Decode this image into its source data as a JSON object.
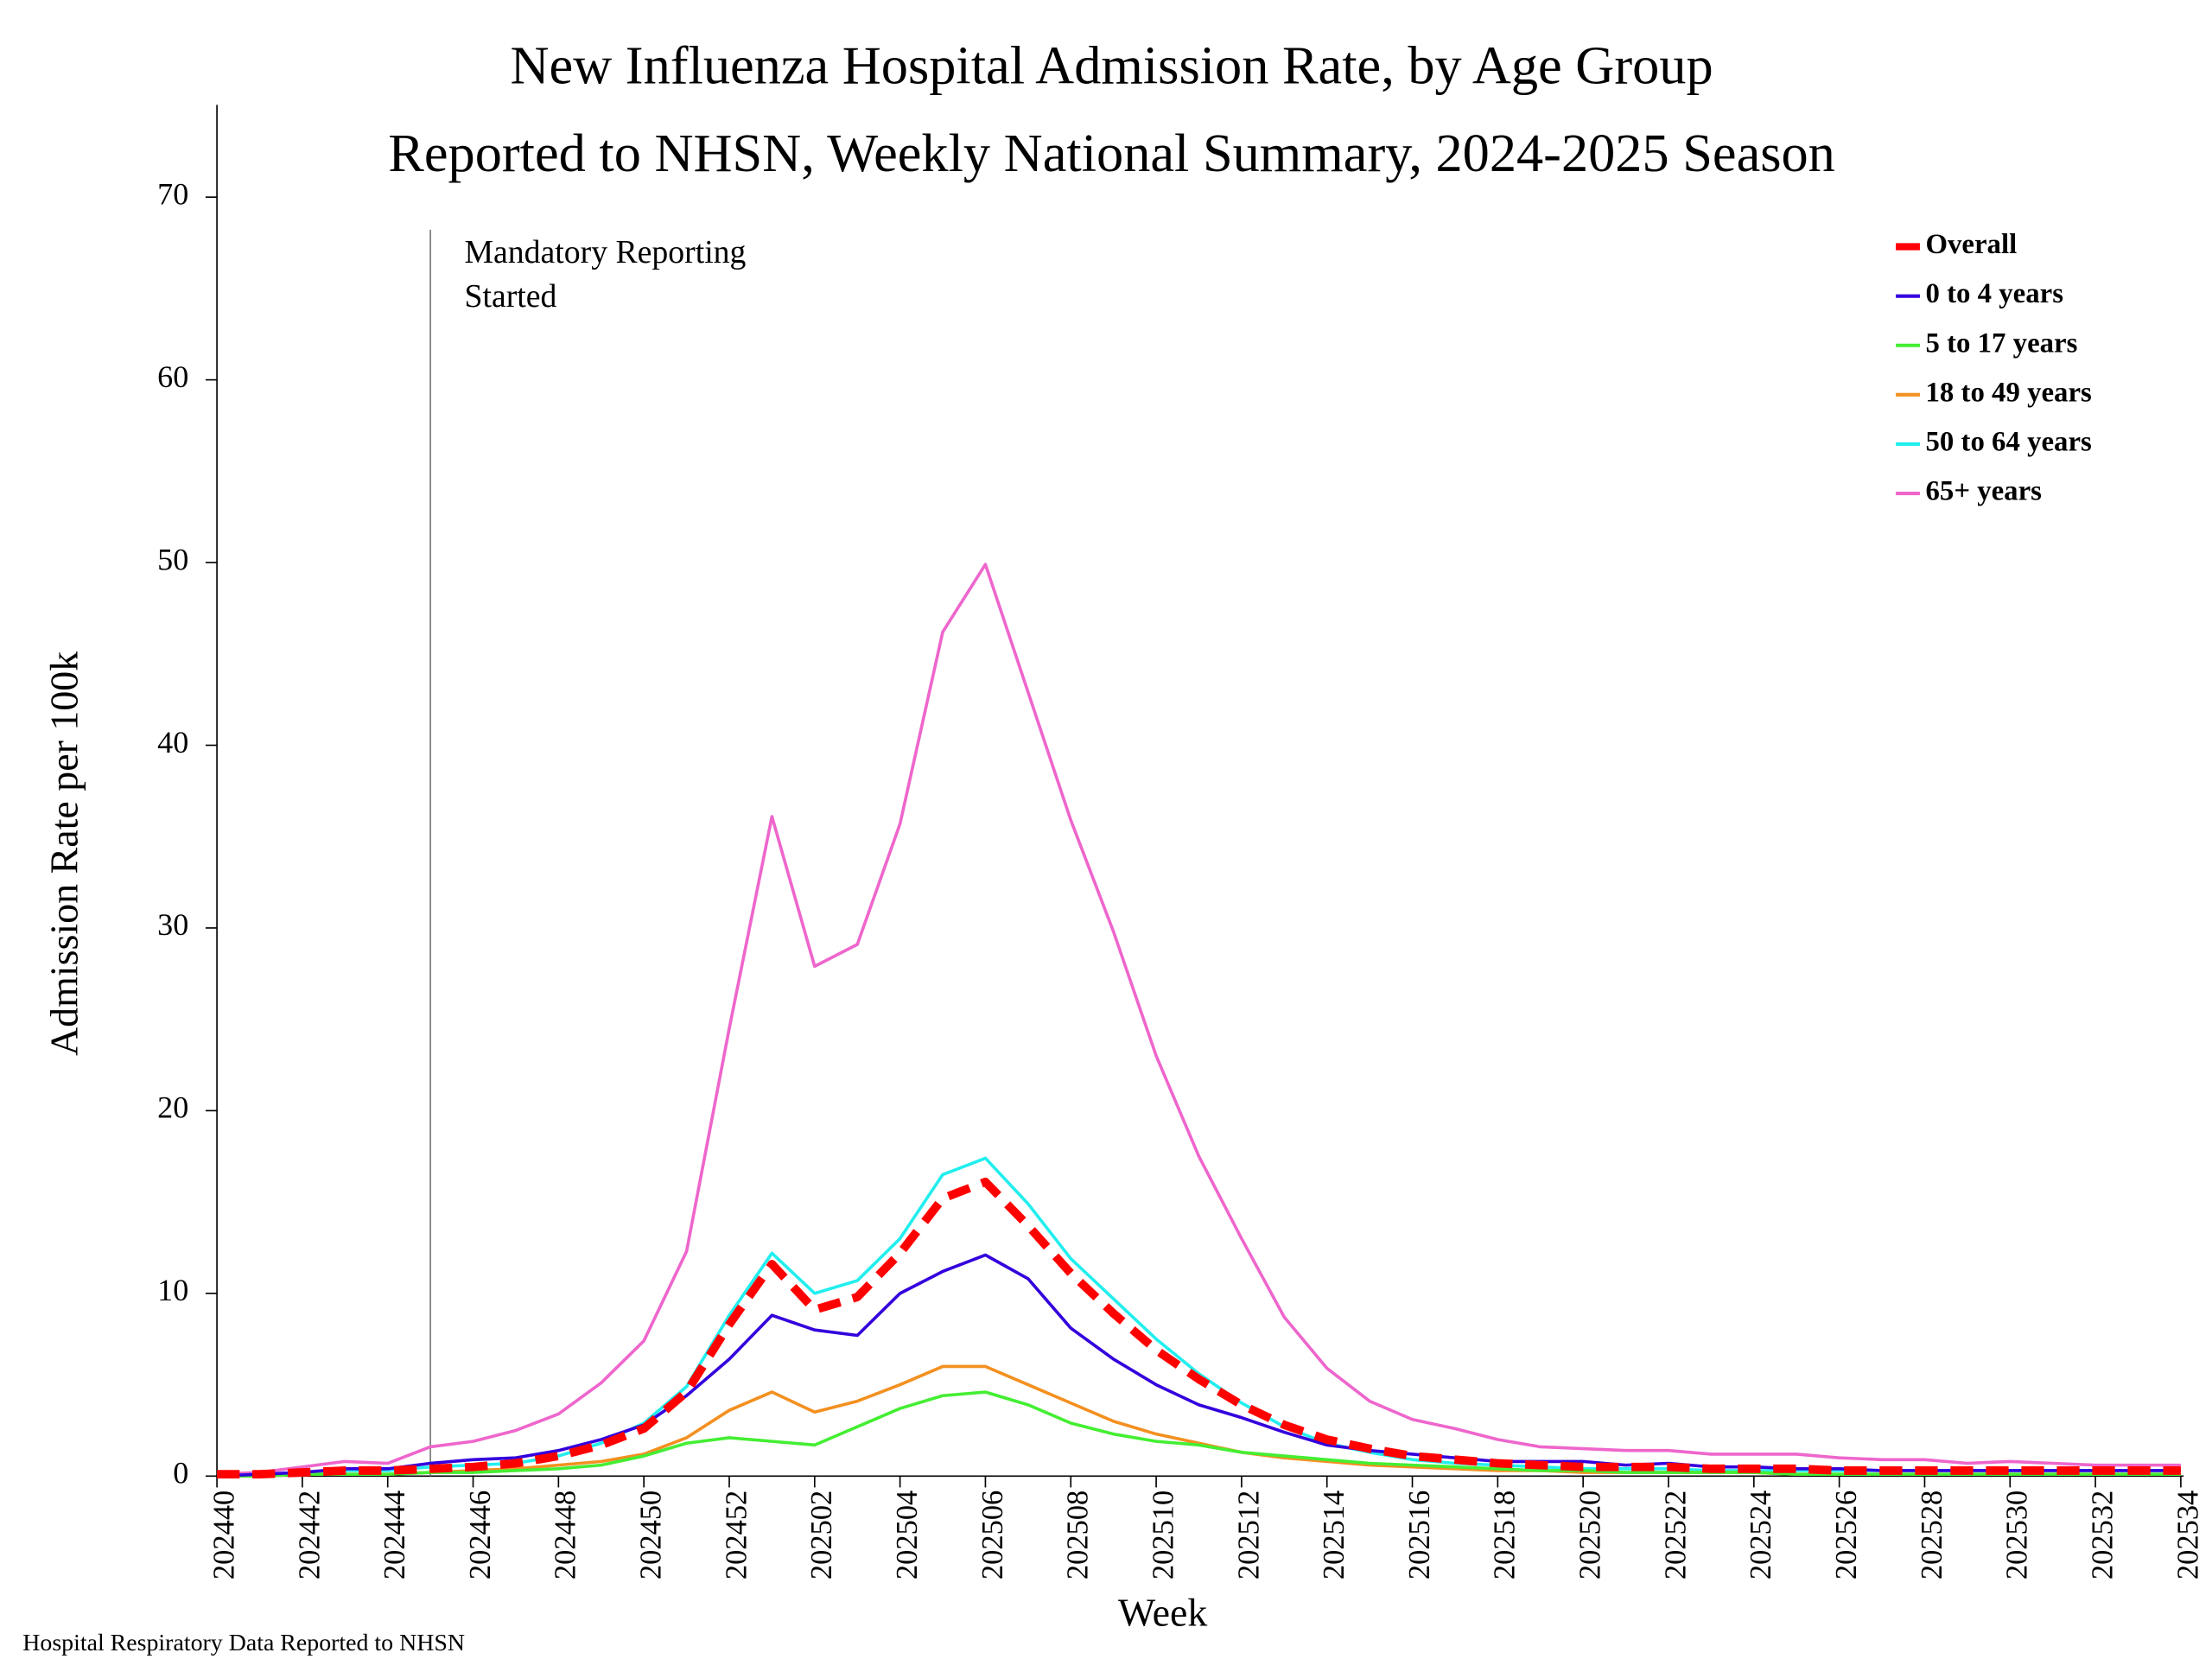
{
  "chart_data": {
    "type": "line",
    "title": "New Influenza Hospital Admission Rate, by Age Group",
    "subtitle": "Reported to NHSN, Weekly National Summary, 2024-2025 Season",
    "x_label": "Week",
    "y_label": "Admission Rate per 100k",
    "source": "Hospital Respiratory Data Reported to NHSN",
    "annotation": [
      "Mandatory Reporting",
      "Started"
    ],
    "categories": [
      "202440",
      null,
      "202442",
      null,
      "202444",
      null,
      "202446",
      null,
      "202448",
      null,
      "202450",
      null,
      "202452",
      null,
      "202502",
      null,
      "202504",
      null,
      "202506",
      null,
      "202508",
      null,
      "202510",
      null,
      "202512",
      null,
      "202514",
      null,
      "202516",
      null,
      "202518",
      null,
      "202520",
      null,
      "202522",
      null,
      "202524",
      null,
      "202526",
      null,
      "202528",
      null,
      "202530",
      null,
      "202532",
      null,
      "202534"
    ],
    "ylim": [
      0,
      75
    ],
    "yticks": [
      0,
      10,
      20,
      30,
      40,
      50,
      60,
      70
    ],
    "grid": false,
    "legend": "upper right",
    "series": [
      {
        "name": "Overall",
        "color": "#ff0000",
        "line_style": "dashed",
        "values": [
          0.1,
          0.1,
          0.2,
          0.3,
          0.3,
          0.4,
          0.5,
          0.7,
          1.1,
          1.7,
          2.6,
          4.6,
          8.3,
          11.6,
          9.1,
          9.8,
          12.2,
          15.2,
          16.1,
          13.7,
          11.1,
          8.9,
          6.9,
          5.3,
          3.9,
          2.8,
          2.0,
          1.5,
          1.1,
          0.9,
          0.7,
          0.6,
          0.5,
          0.5,
          0.5,
          0.4,
          0.4,
          0.4,
          0.3,
          0.3,
          0.3,
          0.3,
          0.3,
          0.3,
          0.3,
          0.3,
          0.3
        ]
      },
      {
        "name": "0 to 4 years",
        "color": "#3300dd",
        "line_style": "solid",
        "values": [
          0.0,
          0.1,
          0.2,
          0.4,
          0.4,
          0.7,
          0.9,
          1.0,
          1.4,
          2.0,
          2.8,
          4.4,
          6.4,
          8.8,
          8.0,
          7.7,
          10.0,
          11.2,
          12.1,
          10.8,
          8.1,
          6.4,
          5.0,
          3.9,
          3.2,
          2.4,
          1.7,
          1.4,
          1.2,
          1.0,
          0.8,
          0.8,
          0.8,
          0.6,
          0.7,
          0.5,
          0.5,
          0.4,
          0.4,
          0.3,
          0.3,
          0.3,
          0.3,
          0.3,
          0.3,
          0.3,
          0.3
        ]
      },
      {
        "name": "5 to 17 years",
        "color": "#44ee33",
        "line_style": "solid",
        "values": [
          0.0,
          0.0,
          0.1,
          0.1,
          0.1,
          0.2,
          0.2,
          0.3,
          0.4,
          0.6,
          1.1,
          1.8,
          2.1,
          1.9,
          1.7,
          2.7,
          3.7,
          4.4,
          4.6,
          3.9,
          2.9,
          2.3,
          1.9,
          1.7,
          1.3,
          1.1,
          0.9,
          0.7,
          0.6,
          0.5,
          0.4,
          0.3,
          0.3,
          0.2,
          0.2,
          0.2,
          0.2,
          0.1,
          0.1,
          0.1,
          0.1,
          0.1,
          0.1,
          0.1,
          0.1,
          0.1,
          0.1
        ]
      },
      {
        "name": "18 to 49 years",
        "color": "#f39020",
        "line_style": "solid",
        "values": [
          0.0,
          0.0,
          0.1,
          0.1,
          0.1,
          0.2,
          0.3,
          0.4,
          0.6,
          0.8,
          1.2,
          2.1,
          3.6,
          4.6,
          3.5,
          4.1,
          5.0,
          6.0,
          6.0,
          5.0,
          4.0,
          3.0,
          2.3,
          1.8,
          1.3,
          1.0,
          0.8,
          0.6,
          0.5,
          0.4,
          0.3,
          0.3,
          0.2,
          0.2,
          0.2,
          0.2,
          0.2,
          0.1,
          0.1,
          0.1,
          0.1,
          0.1,
          0.1,
          0.1,
          0.1,
          0.1,
          0.1
        ]
      },
      {
        "name": "50 to 64 years",
        "color": "#22eeee",
        "line_style": "solid",
        "values": [
          0.0,
          0.1,
          0.2,
          0.3,
          0.3,
          0.5,
          0.6,
          0.7,
          1.1,
          1.8,
          2.9,
          4.9,
          8.8,
          12.2,
          10.0,
          10.7,
          13.0,
          16.5,
          17.4,
          14.9,
          11.9,
          9.7,
          7.5,
          5.6,
          4.0,
          2.7,
          1.8,
          1.3,
          0.9,
          0.7,
          0.6,
          0.5,
          0.4,
          0.4,
          0.4,
          0.3,
          0.3,
          0.3,
          0.3,
          0.3,
          0.3,
          0.3,
          0.3,
          0.3,
          0.3,
          0.3,
          0.3
        ]
      },
      {
        "name": "65+ years",
        "color": "#ee66cc",
        "line_style": "solid",
        "values": [
          0.1,
          0.2,
          0.5,
          0.8,
          0.7,
          1.6,
          1.9,
          2.5,
          3.4,
          5.1,
          7.4,
          12.3,
          24.5,
          36.1,
          27.9,
          29.1,
          35.7,
          46.2,
          49.9,
          42.9,
          35.9,
          29.8,
          23.0,
          17.5,
          13.0,
          8.7,
          5.9,
          4.1,
          3.1,
          2.6,
          2.0,
          1.6,
          1.5,
          1.4,
          1.4,
          1.2,
          1.2,
          1.2,
          1.0,
          0.9,
          0.9,
          0.7,
          0.8,
          0.7,
          0.6,
          0.6,
          0.6
        ]
      }
    ]
  }
}
